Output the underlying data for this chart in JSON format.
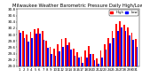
{
  "title": "Milwaukee Weather Barometric Pressure Daily High/Low",
  "title_fontsize": 3.8,
  "bar_width": 0.4,
  "high_color": "#ff0000",
  "low_color": "#0000ff",
  "legend_high": "High",
  "legend_low": "Low",
  "ylim": [
    29.0,
    30.8
  ],
  "yticks": [
    29.0,
    29.2,
    29.4,
    29.6,
    29.8,
    30.0,
    30.2,
    30.4,
    30.6,
    30.8
  ],
  "ytick_fontsize": 3.0,
  "xtick_fontsize": 2.8,
  "background_color": "#ffffff",
  "dates": [
    "1",
    "2",
    "3",
    "4",
    "5",
    "6",
    "7",
    "8",
    "9",
    "10",
    "11",
    "12",
    "13",
    "14",
    "15",
    "16",
    "17",
    "18",
    "19",
    "20",
    "21",
    "22",
    "23",
    "24",
    "25",
    "26",
    "27",
    "28",
    "29",
    "30",
    "31"
  ],
  "highs": [
    30.15,
    30.12,
    30.0,
    30.08,
    30.18,
    30.2,
    30.1,
    29.8,
    29.6,
    29.55,
    29.7,
    29.85,
    29.9,
    29.75,
    29.55,
    29.45,
    29.3,
    29.5,
    29.65,
    29.4,
    29.25,
    29.5,
    29.7,
    29.9,
    30.1,
    30.35,
    30.42,
    30.3,
    30.22,
    30.05,
    29.85
  ],
  "lows": [
    30.05,
    29.9,
    29.78,
    29.88,
    30.02,
    30.03,
    29.82,
    29.57,
    29.38,
    29.32,
    29.48,
    29.62,
    29.67,
    29.52,
    29.32,
    29.28,
    29.12,
    29.28,
    29.38,
    29.18,
    29.08,
    29.28,
    29.52,
    29.72,
    29.88,
    30.12,
    30.22,
    30.12,
    29.98,
    29.82,
    29.62
  ]
}
